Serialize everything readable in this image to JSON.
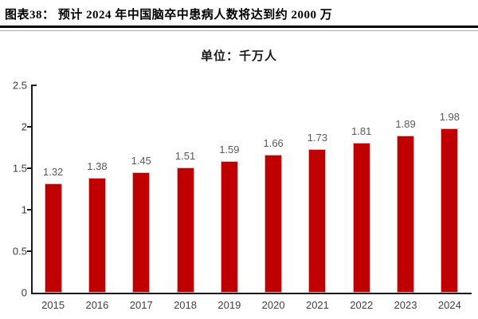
{
  "header": {
    "title": "图表38：  预计 2024 年中国脑卒中患病人数将达到约 2000 万"
  },
  "chart_data": {
    "type": "bar",
    "title": "单位：千万人",
    "categories": [
      "2015",
      "2016",
      "2017",
      "2018",
      "2019",
      "2020",
      "2021",
      "2022",
      "2023",
      "2024"
    ],
    "values": [
      1.32,
      1.38,
      1.45,
      1.51,
      1.59,
      1.66,
      1.73,
      1.81,
      1.89,
      1.98
    ],
    "value_labels": [
      "1.32",
      "1.38",
      "1.45",
      "1.51",
      "1.59",
      "1.66",
      "1.73",
      "1.81",
      "1.89",
      "1.98"
    ],
    "xlabel": "",
    "ylabel": "",
    "ylim": [
      0,
      2.5
    ],
    "yticks": [
      0,
      0.5,
      1,
      1.5,
      2,
      2.5
    ],
    "ytick_labels": [
      "0",
      "0.5",
      "1",
      "1.5",
      "2",
      "2.5"
    ],
    "grid": false,
    "legend": "none",
    "colors": {
      "bar": "#c00000",
      "bar_border": "#e6b1b1",
      "data_label": "#595959",
      "axis": "#1a1a1a",
      "tick_label": "#3a3a3a",
      "category_label": "#404040"
    }
  }
}
